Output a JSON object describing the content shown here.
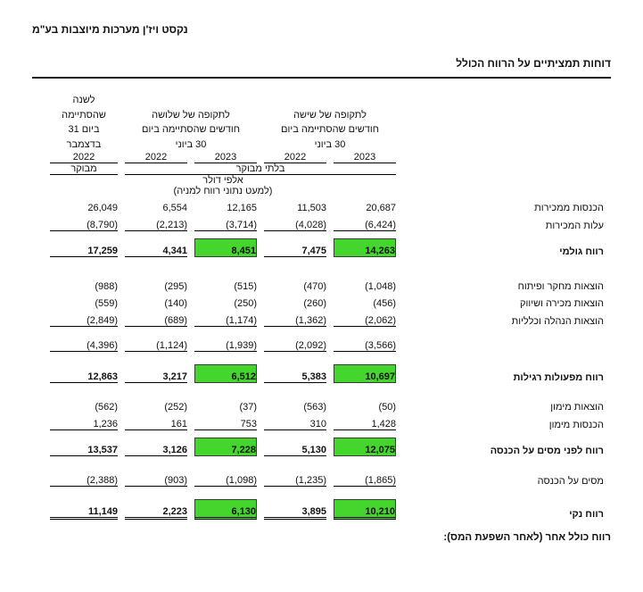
{
  "header": {
    "company_name": "נקסט ויז'ן מערכות מיוצבות בע\"מ",
    "statement_title": "דוחות תמציתיים על הרווח הכולל"
  },
  "table": {
    "column_groups": [
      {
        "id": "six_months",
        "title_lines": [
          "לתקופה של שישה",
          "חודשים שהסתיימה ביום",
          "30 ביוני"
        ],
        "years": [
          "2023",
          "2022"
        ]
      },
      {
        "id": "three_months",
        "title_lines": [
          "לתקופה של שלושה",
          "חודשים שהסתיימה ביום",
          "30 ביוני"
        ],
        "years": [
          "2023",
          "2022"
        ]
      },
      {
        "id": "annual",
        "title_lines": [
          "לשנה",
          "שהסתיימה",
          "ביום 31",
          "בדצמבר"
        ],
        "years": [
          "2022"
        ]
      }
    ],
    "unaudited_label": "בלתי מבוקר",
    "audited_label": "מבוקר",
    "units_line1": "אלפי דולר",
    "units_line2": "(למעט נתוני רווח למניה)",
    "value_column_order": [
      "six_months_2023",
      "six_months_2022",
      "three_months_2023",
      "three_months_2022",
      "annual_2022"
    ],
    "highlight_value_indices": [
      0,
      2
    ],
    "rows": [
      {
        "type": "data",
        "label": "הכנסות ממכירות",
        "values": [
          "20,687",
          "11,503",
          "12,165",
          "6,554",
          "26,049"
        ],
        "bold": false,
        "highlight": false,
        "underline": "none"
      },
      {
        "type": "data",
        "label": "עלות המכירות",
        "values": [
          "(6,424)",
          "(4,028)",
          "(3,714)",
          "(2,213)",
          "(8,790)"
        ],
        "bold": false,
        "highlight": false,
        "underline": "single"
      },
      {
        "type": "spacer",
        "size": "s"
      },
      {
        "type": "data",
        "label": "רווח גולמי",
        "values": [
          "14,263",
          "7,475",
          "8,451",
          "4,341",
          "17,259"
        ],
        "bold": true,
        "highlight": true,
        "underline": "single"
      },
      {
        "type": "spacer",
        "size": "l"
      },
      {
        "type": "data",
        "label": "הוצאות מחקר ופיתוח",
        "values": [
          "(1,048)",
          "(470)",
          "(515)",
          "(295)",
          "(988)"
        ],
        "bold": false,
        "highlight": false,
        "underline": "none"
      },
      {
        "type": "data",
        "label": "הוצאות מכירה ושיווק",
        "values": [
          "(456)",
          "(260)",
          "(250)",
          "(140)",
          "(559)"
        ],
        "bold": false,
        "highlight": false,
        "underline": "none"
      },
      {
        "type": "data",
        "label": "הוצאות הנהלה וכלליות",
        "values": [
          "(2,062)",
          "(1,362)",
          "(1,174)",
          "(689)",
          "(2,849)"
        ],
        "bold": false,
        "highlight": false,
        "underline": "single"
      },
      {
        "type": "spacer",
        "size": "s"
      },
      {
        "type": "data",
        "label": "",
        "values": [
          "(3,566)",
          "(2,092)",
          "(1,939)",
          "(1,124)",
          "(4,396)"
        ],
        "bold": false,
        "highlight": false,
        "underline": "single"
      },
      {
        "type": "spacer",
        "size": "m"
      },
      {
        "type": "data",
        "label": "רווח מפעולות רגילות",
        "values": [
          "10,697",
          "5,383",
          "6,512",
          "3,217",
          "12,863"
        ],
        "bold": true,
        "highlight": true,
        "underline": "single"
      },
      {
        "type": "spacer",
        "size": "m"
      },
      {
        "type": "data",
        "label": "הוצאות מימון",
        "values": [
          "(50)",
          "(563)",
          "(37)",
          "(252)",
          "(562)"
        ],
        "bold": false,
        "highlight": false,
        "underline": "none"
      },
      {
        "type": "data",
        "label": "הכנסות מימון",
        "values": [
          "1,428",
          "310",
          "753",
          "161",
          "1,236"
        ],
        "bold": false,
        "highlight": false,
        "underline": "single"
      },
      {
        "type": "spacer",
        "size": "s"
      },
      {
        "type": "data",
        "label": "רווח לפני מסים על הכנסה",
        "values": [
          "12,075",
          "5,130",
          "7,228",
          "3,126",
          "13,537"
        ],
        "bold": true,
        "highlight": true,
        "underline": "single"
      },
      {
        "type": "spacer",
        "size": "m"
      },
      {
        "type": "data",
        "label": "מסים על הכנסה",
        "values": [
          "(1,865)",
          "(1,235)",
          "(1,098)",
          "(903)",
          "(2,388)"
        ],
        "bold": false,
        "highlight": false,
        "underline": "single"
      },
      {
        "type": "spacer",
        "size": "m"
      },
      {
        "type": "data",
        "label": "רווח נקי",
        "values": [
          "10,210",
          "3,895",
          "6,130",
          "2,223",
          "11,149"
        ],
        "bold": true,
        "highlight": true,
        "underline": "double"
      }
    ],
    "footer_note": "רווח כולל אחר (לאחר השפעת המס):"
  },
  "colors": {
    "highlight_green": "#45d62d",
    "text": "#111111",
    "rule": "#1d1d1d"
  }
}
